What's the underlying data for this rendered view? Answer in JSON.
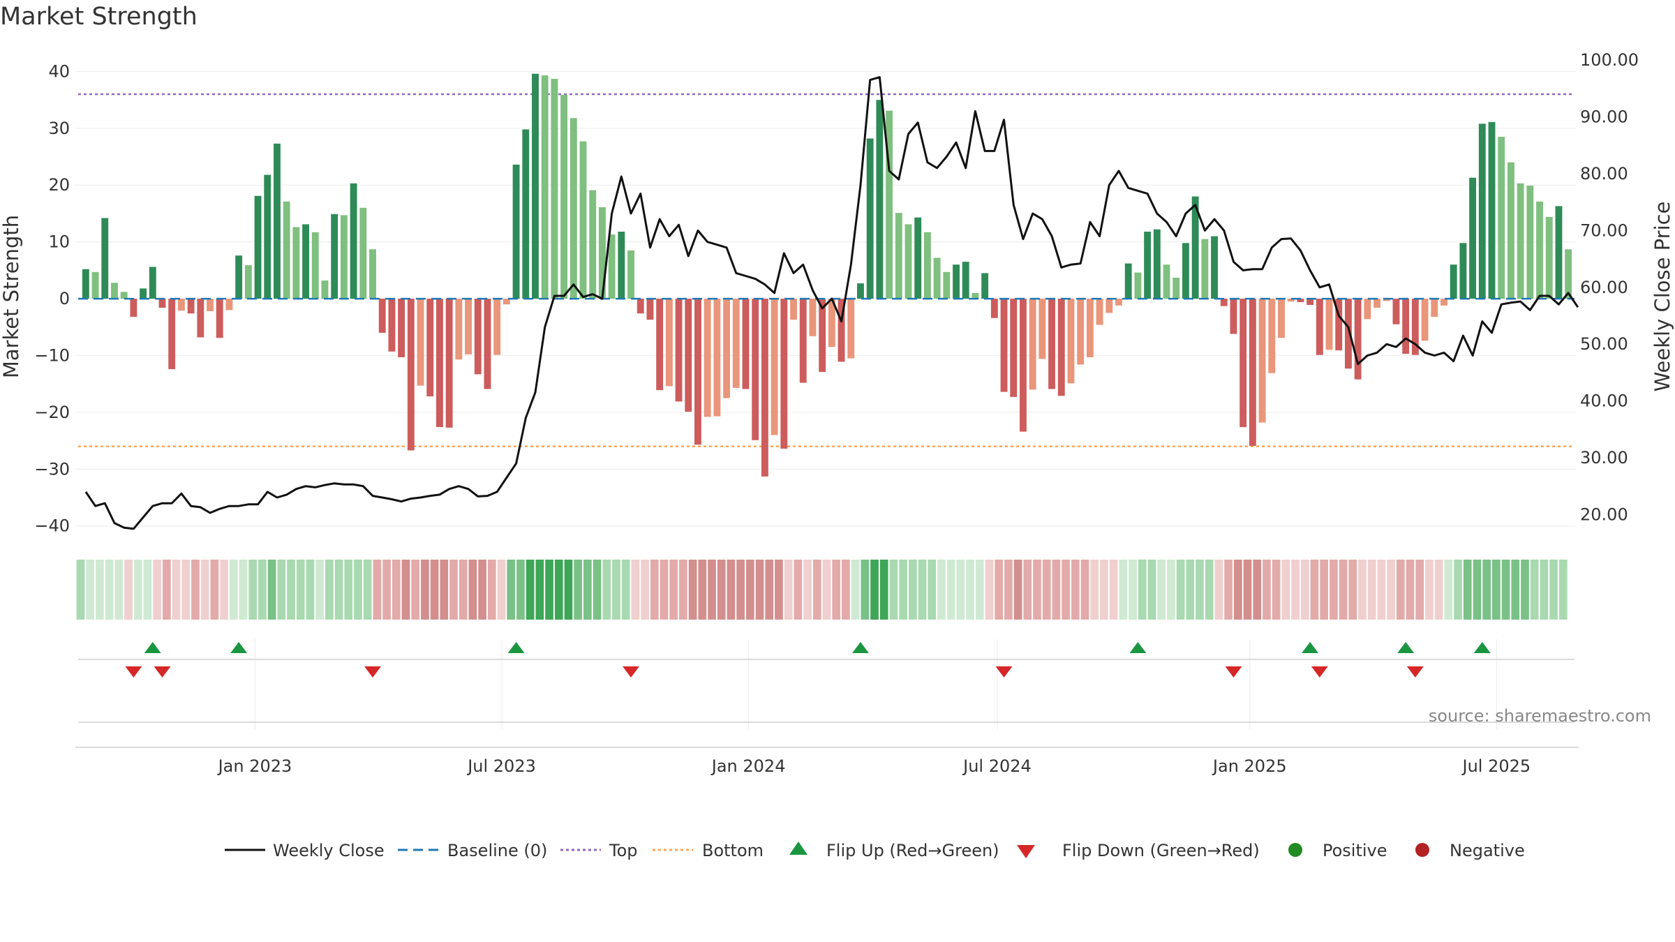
{
  "title": "Market Strength",
  "source": "source: sharemaestro.com",
  "colors": {
    "pos_strong": "#2e8b57",
    "pos_weak": "#7fbf7f",
    "neg_strong": "#cd5c5c",
    "neg_weak": "#e9967a",
    "price": "#111111",
    "baseline": "#1f77b4",
    "top": "#9467bd",
    "bottom": "#ff7f0e",
    "flip_up": "#1a9641",
    "flip_down": "#d62728",
    "positive": "#228b22",
    "negative": "#b22222"
  },
  "chart_data": {
    "type": "bar",
    "left_axis": {
      "label": "Market Strength",
      "ticks": [
        "40",
        "30",
        "20",
        "10",
        "0",
        "−10",
        "−20",
        "−30",
        "−40"
      ],
      "range": [
        -42,
        43
      ]
    },
    "right_axis": {
      "label": "Weekly Close Price",
      "ticks": [
        "100.00",
        "90.00",
        "80.00",
        "70.00",
        "60.00",
        "50.00",
        "40.00",
        "30.00",
        "20.00"
      ],
      "range": [
        16,
        101
      ]
    },
    "x_ticks": [
      "Jan 2023",
      "Jul 2023",
      "Jan 2024",
      "Jul 2024",
      "Jan 2025",
      "Jul 2025"
    ],
    "top_threshold": 36,
    "bottom_threshold": -26,
    "strength": [
      5.2,
      4.7,
      14.2,
      2.8,
      1.2,
      -3.2,
      1.8,
      5.6,
      -1.6,
      -12.4,
      -2.1,
      -2.6,
      -6.8,
      -2.2,
      -6.9,
      -2.0,
      7.6,
      5.9,
      18.1,
      21.8,
      27.3,
      17.1,
      12.6,
      13.1,
      11.7,
      3.2,
      14.9,
      14.7,
      20.3,
      16.0,
      8.7,
      -6.0,
      -9.3,
      -10.3,
      -26.7,
      -15.3,
      -17.2,
      -22.6,
      -22.7,
      -10.7,
      -9.8,
      -13.3,
      -15.9,
      -9.9,
      -1.0,
      23.6,
      29.8,
      39.6,
      39.3,
      38.7,
      35.9,
      31.8,
      27.7,
      19.1,
      16.1,
      11.3,
      11.8,
      8.5,
      -2.6,
      -3.7,
      -16.1,
      -15.4,
      -18.1,
      -19.9,
      -25.7,
      -20.8,
      -20.7,
      -17.5,
      -15.7,
      -15.9,
      -24.9,
      -31.3,
      -24.0,
      -26.4,
      -3.7,
      -14.8,
      -6.6,
      -12.9,
      -8.5,
      -11.1,
      -10.5,
      2.7,
      28.2,
      35.0,
      33.1,
      15.1,
      13.1,
      14.3,
      11.7,
      7.2,
      4.7,
      6.0,
      6.5,
      1.0,
      4.5,
      -3.4,
      -16.4,
      -17.3,
      -23.4,
      -16.0,
      -10.6,
      -15.9,
      -17.1,
      -14.9,
      -11.6,
      -10.3,
      -4.6,
      -2.5,
      -1.2,
      6.2,
      4.6,
      11.8,
      12.2,
      6.0,
      3.7,
      9.8,
      18.0,
      10.5,
      11.0,
      -1.3,
      -6.2,
      -22.6,
      -25.9,
      -21.8,
      -13.1,
      -6.9,
      -0.5,
      -0.6,
      -1.1,
      -9.9,
      -9.0,
      -9.1,
      -12.3,
      -14.2,
      -3.6,
      -1.6,
      -0.4,
      -4.5,
      -9.7,
      -9.9,
      -7.4,
      -3.2,
      -1.2,
      6.0,
      9.8,
      21.3,
      30.8,
      31.1,
      28.5,
      24.0,
      20.3,
      19.9,
      17.1,
      14.4,
      16.3,
      8.7
    ],
    "weekly_close": [
      24.0,
      21.5,
      22.0,
      18.5,
      17.7,
      17.5,
      19.5,
      21.5,
      22.0,
      22.0,
      23.7,
      21.5,
      21.3,
      20.3,
      21.0,
      21.5,
      21.5,
      21.8,
      21.8,
      24.0,
      23.0,
      23.5,
      24.5,
      25.0,
      24.8,
      25.2,
      25.5,
      25.3,
      25.3,
      25.0,
      23.3,
      23.0,
      22.7,
      22.3,
      22.8,
      23.0,
      23.3,
      23.5,
      24.5,
      25.0,
      24.5,
      23.2,
      23.3,
      24.0,
      26.5,
      29.0,
      37.0,
      41.5,
      53.0,
      58.5,
      58.5,
      60.5,
      58.3,
      58.8,
      58.0,
      73.0,
      79.5,
      73.0,
      76.5,
      67.0,
      72.0,
      69.0,
      71.0,
      65.5,
      70.0,
      68.0,
      67.5,
      67.0,
      62.5,
      62.0,
      61.5,
      60.5,
      59.0,
      66.0,
      62.5,
      64.0,
      59.5,
      56.3,
      58.0,
      54.0,
      64.0,
      78.0,
      96.5,
      97.0,
      80.5,
      79.0,
      87.0,
      89.0,
      82.0,
      81.0,
      83.0,
      85.5,
      81.0,
      91.0,
      84.0,
      84.0,
      89.5,
      74.5,
      68.5,
      73.0,
      72.0,
      69.0,
      63.5,
      64.0,
      64.2,
      71.5,
      69.0,
      78.0,
      80.5,
      77.5,
      77.0,
      76.5,
      73.0,
      71.5,
      69.0,
      73.0,
      74.5,
      70.0,
      72.0,
      70.0,
      64.5,
      63.0,
      63.2,
      63.2,
      67.0,
      68.5,
      68.6,
      66.5,
      63.0,
      60.0,
      60.5,
      55.0,
      53.0,
      46.5,
      48.0,
      48.5,
      50.0,
      49.5,
      51.0,
      50.0,
      48.5,
      48.0,
      48.5,
      47.0,
      51.5,
      48.0,
      54.0,
      52.0,
      57.0,
      57.3,
      57.5,
      56.0,
      58.5,
      58.5,
      57.0,
      59.0,
      56.5
    ],
    "regime_shade": [
      2,
      1,
      1,
      1,
      1,
      -1,
      1,
      1,
      -1,
      -2,
      -1,
      -1,
      -2,
      -1,
      -2,
      -1,
      1,
      1,
      2,
      2,
      3,
      2,
      2,
      2,
      2,
      1,
      2,
      2,
      2,
      2,
      2,
      -2,
      -2,
      -2,
      -3,
      -2,
      -3,
      -3,
      -3,
      -2,
      -2,
      -3,
      -3,
      -2,
      -1,
      3,
      3,
      4,
      4,
      4,
      4,
      4,
      3,
      3,
      3,
      2,
      2,
      2,
      -1,
      -1,
      -2,
      -2,
      -2,
      -2,
      -3,
      -3,
      -3,
      -3,
      -3,
      -3,
      -3,
      -3,
      -3,
      -3,
      -1,
      -2,
      -1,
      -2,
      -1,
      -2,
      -2,
      1,
      3,
      4,
      4,
      2,
      2,
      2,
      2,
      2,
      1,
      1,
      1,
      1,
      1,
      -1,
      -2,
      -2,
      -3,
      -2,
      -2,
      -2,
      -2,
      -2,
      -2,
      -2,
      -1,
      -1,
      -1,
      1,
      1,
      2,
      2,
      1,
      1,
      2,
      2,
      2,
      2,
      -1,
      -2,
      -3,
      -3,
      -3,
      -2,
      -2,
      -1,
      -1,
      -1,
      -2,
      -2,
      -2,
      -2,
      -2,
      -1,
      -1,
      -1,
      -1,
      -2,
      -2,
      -2,
      -1,
      -1,
      1,
      2,
      3,
      3,
      3,
      3,
      3,
      3,
      3,
      2,
      2,
      2,
      2
    ],
    "flip_up_idx": [
      7,
      16,
      45,
      81,
      110,
      128,
      138,
      146
    ],
    "flip_down_idx": [
      5,
      8,
      30,
      57,
      96,
      120,
      129,
      139
    ]
  },
  "legend": {
    "weekly_close": "Weekly Close",
    "baseline": "Baseline (0)",
    "top": "Top",
    "bottom": "Bottom",
    "flip_up": "Flip Up (Red→Green)",
    "flip_down": "Flip Down (Green→Red)",
    "positive": "Positive",
    "negative": "Negative"
  }
}
